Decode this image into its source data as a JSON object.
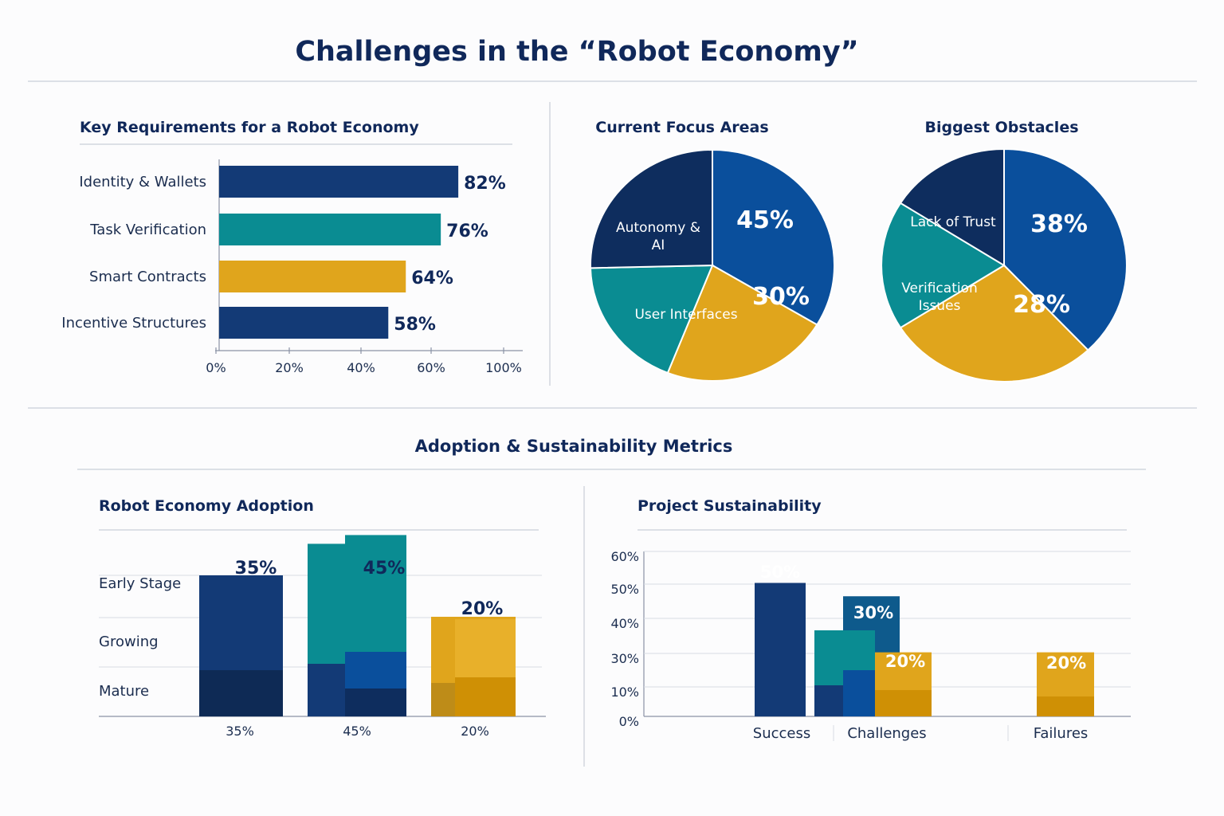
{
  "page": {
    "title": "Challenges in the “Robot Economy”",
    "section2_title": "Adoption & Sustainability Metrics"
  },
  "colors": {
    "navy": "#133a76",
    "dark_navy": "#0e2d5e",
    "blue": "#0a4f9c",
    "teal": "#0a8c92",
    "gold": "#e0a51c",
    "dark_gold": "#cf9005",
    "deep_navy": "#0b2a54"
  },
  "chart_data": [
    {
      "id": "requirements",
      "type": "bar",
      "orientation": "horizontal",
      "title": "Key Requirements for a Robot Economy",
      "categories": [
        "Identity & Wallets",
        "Task Verification",
        "Smart Contracts",
        "Incentive Structures"
      ],
      "values": [
        82,
        76,
        64,
        58
      ],
      "value_labels": [
        "82%",
        "76%",
        "64%",
        "58%"
      ],
      "colors": [
        "navy",
        "teal",
        "gold",
        "navy"
      ],
      "x_ticks": [
        0,
        20,
        40,
        60,
        100
      ],
      "x_tick_labels": [
        "0%",
        "20%",
        "40%",
        "60%",
        "100%"
      ],
      "unit": "%"
    },
    {
      "id": "focus",
      "type": "pie",
      "title": "Current Focus Areas",
      "slices": [
        {
          "label": "",
          "value": 45,
          "value_label": "45%",
          "color": "blue"
        },
        {
          "label": "",
          "value": 30,
          "value_label": "30%",
          "color": "gold"
        },
        {
          "label": "User Interfaces",
          "value": 25,
          "value_label": "",
          "color": "teal"
        },
        {
          "label": "Autonomy & AI",
          "value": 34,
          "value_label": "",
          "color": "dark_navy"
        }
      ]
    },
    {
      "id": "obstacles",
      "type": "pie",
      "title": "Biggest Obstacles",
      "slices": [
        {
          "label": "",
          "value": 38,
          "value_label": "38%",
          "color": "blue"
        },
        {
          "label": "",
          "value": 28,
          "value_label": "28%",
          "color": "gold"
        },
        {
          "label": "Verification Issues",
          "value": 18,
          "value_label": "",
          "color": "teal"
        },
        {
          "label": "Lack of Trust",
          "value": 16,
          "value_label": "",
          "color": "dark_navy"
        }
      ]
    },
    {
      "id": "adoption",
      "type": "bar",
      "title": "Robot Economy Adoption",
      "row_labels": [
        "Early Stage",
        "Growing",
        "Mature"
      ],
      "categories": [
        "35%",
        "45%",
        "20%"
      ],
      "values": [
        35,
        45,
        20
      ],
      "value_labels": [
        "35%",
        "45%",
        "20%"
      ],
      "colors": [
        "navy",
        "teal",
        "gold"
      ]
    },
    {
      "id": "sustainability",
      "type": "bar",
      "title": "Project Sustainability",
      "categories": [
        "Success",
        "Challenges",
        "Failures"
      ],
      "series": [
        {
          "name": "Success",
          "category": "Success",
          "value": 50,
          "value_label": "50%",
          "color": "navy"
        },
        {
          "name": "Challenges",
          "category": "Challenges",
          "value": 30,
          "value_label": "30%",
          "color": "blue"
        },
        {
          "name": "Challenges",
          "category": "Challenges",
          "value": 20,
          "value_label": "20%",
          "color": "gold"
        },
        {
          "name": "Failures",
          "category": "Failures",
          "value": 20,
          "value_label": "20%",
          "color": "gold"
        }
      ],
      "y_ticks": [
        0,
        10,
        30,
        40,
        50,
        60
      ],
      "y_tick_labels": [
        "0%",
        "10%",
        "30%",
        "40%",
        "50%",
        "60%"
      ],
      "unit": "%"
    }
  ]
}
